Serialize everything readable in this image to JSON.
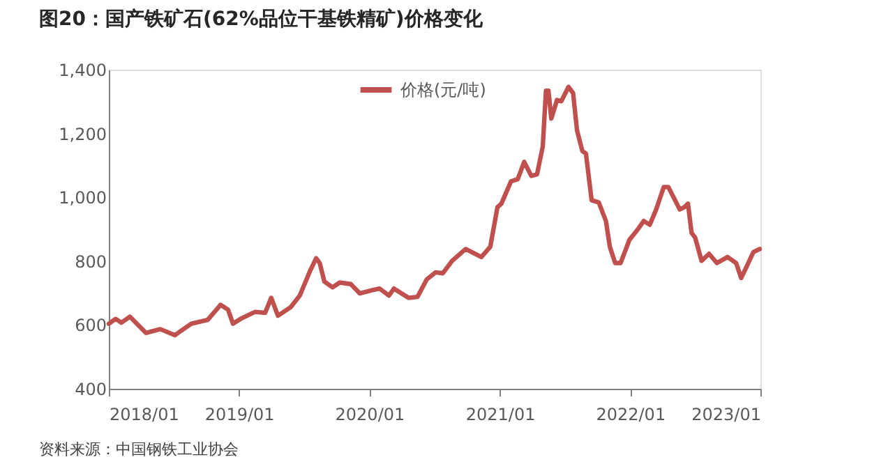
{
  "chart_data": {
    "type": "line",
    "title": "图20：国产铁矿石(62%品位干基铁精矿)价格变化",
    "annotations": [
      "资料来源：中国钢铁工业协会"
    ],
    "x": [
      "2018-01-01",
      "2018-01-20",
      "2018-02-05",
      "2018-03-01",
      "2018-04-15",
      "2018-05-25",
      "2018-07-05",
      "2018-08-20",
      "2018-10-05",
      "2018-11-10",
      "2018-12-01",
      "2018-12-15",
      "2019-01-05",
      "2019-02-15",
      "2019-03-15",
      "2019-04-01",
      "2019-04-20",
      "2019-05-25",
      "2019-06-20",
      "2019-07-20",
      "2019-08-05",
      "2019-08-15",
      "2019-08-28",
      "2019-09-20",
      "2019-10-10",
      "2019-11-10",
      "2019-12-05",
      "2020-01-10",
      "2020-01-30",
      "2020-02-25",
      "2020-03-10",
      "2020-04-20",
      "2020-05-15",
      "2020-06-10",
      "2020-07-05",
      "2020-07-25",
      "2020-08-20",
      "2020-09-27",
      "2020-11-10",
      "2020-12-05",
      "2020-12-25",
      "2021-01-05",
      "2021-02-01",
      "2021-02-20",
      "2021-03-10",
      "2021-03-30",
      "2021-04-15",
      "2021-05-01",
      "2021-05-10",
      "2021-05-17",
      "2021-05-25",
      "2021-06-10",
      "2021-06-22",
      "2021-07-12",
      "2021-07-25",
      "2021-08-05",
      "2021-08-20",
      "2021-08-30",
      "2021-09-15",
      "2021-10-05",
      "2021-10-25",
      "2021-11-05",
      "2021-11-20",
      "2021-12-05",
      "2021-12-30",
      "2022-01-20",
      "2022-02-08",
      "2022-02-25",
      "2022-03-15",
      "2022-04-05",
      "2022-04-18",
      "2022-05-20",
      "2022-06-02",
      "2022-06-12",
      "2022-06-22",
      "2022-07-02",
      "2022-07-20",
      "2022-08-10",
      "2022-09-01",
      "2022-10-01",
      "2022-10-25",
      "2022-11-08",
      "2022-11-25",
      "2022-12-12",
      "2022-12-30"
    ],
    "series": [
      {
        "name": "价格(元/吨)",
        "color": "#c0504d",
        "values": [
          604,
          619,
          607,
          626,
          575,
          587,
          568,
          604,
          616,
          663,
          648,
          604,
          619,
          641,
          638,
          685,
          629,
          655,
          692,
          772,
          809,
          794,
          736,
          718,
          733,
          728,
          699,
          709,
          714,
          692,
          714,
          685,
          688,
          743,
          765,
          762,
          801,
          838,
          813,
          845,
          969,
          980,
          1050,
          1057,
          1111,
          1067,
          1072,
          1159,
          1334,
          1334,
          1247,
          1305,
          1301,
          1346,
          1327,
          1210,
          1145,
          1137,
          991,
          984,
          926,
          845,
          794,
          794,
          867,
          896,
          926,
          914,
          962,
          1032,
          1032,
          962,
          969,
          980,
          889,
          874,
          801,
          823,
          794,
          813,
          794,
          747,
          787,
          828,
          838
        ]
      }
    ],
    "xlim": [
      "2018-01-01",
      "2023-01-01"
    ],
    "xticks": [
      {
        "value": "2018-01-01",
        "label": "2018/01"
      },
      {
        "value": "2019-01-01",
        "label": "2019/01"
      },
      {
        "value": "2020-01-01",
        "label": "2020/01"
      },
      {
        "value": "2021-01-01",
        "label": "2021/01"
      },
      {
        "value": "2022-01-01",
        "label": "2022/01"
      },
      {
        "value": "2023-01-01",
        "label": "2023/01"
      }
    ],
    "ylim": [
      400,
      1400
    ],
    "yticks": [
      {
        "value": 400,
        "label": "400"
      },
      {
        "value": 600,
        "label": "600"
      },
      {
        "value": 800,
        "label": "800"
      },
      {
        "value": 1000,
        "label": "1,000"
      },
      {
        "value": 1200,
        "label": "1,200"
      },
      {
        "value": 1400,
        "label": "1,400"
      }
    ],
    "grid": false,
    "legend": "top",
    "marker": "none",
    "line_style": "solid"
  }
}
